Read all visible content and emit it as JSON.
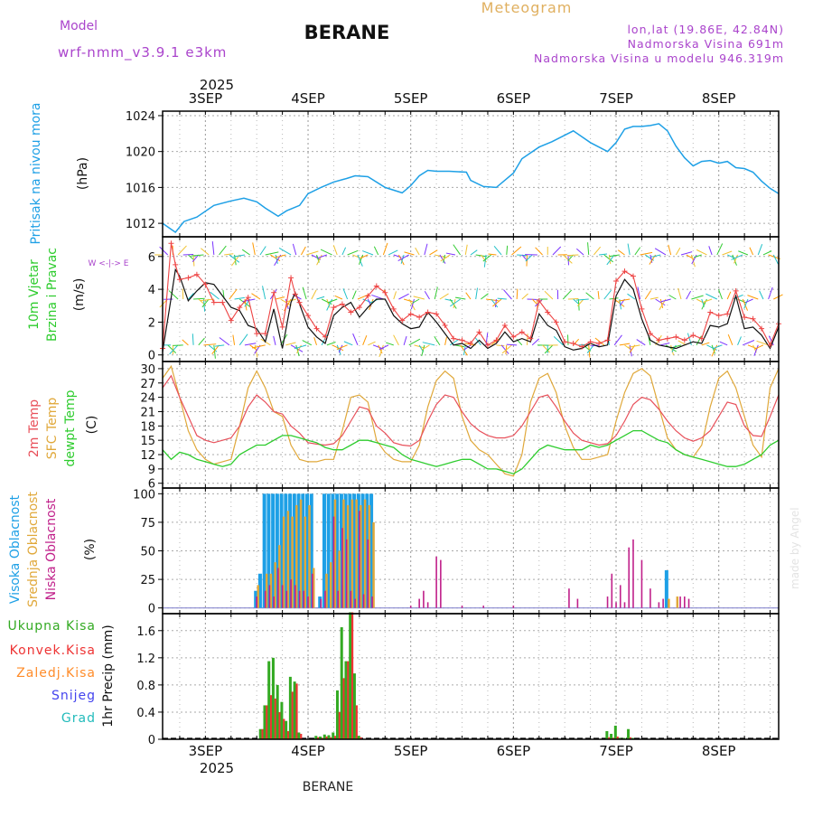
{
  "header": {
    "model_label": "Model",
    "model_name": "wrf-nmm_v3.9.1 e3km",
    "title": "BERANE",
    "product": "Meteogram",
    "location": "lon,lat (19.86E, 42.84N)",
    "elevation": "Nadmorska Visina 691m",
    "model_elevation": "Nadmorska Visina u modelu 946.319m",
    "footer_title": "BERANE",
    "watermark": "made by Angel"
  },
  "colors": {
    "pressure": "#1ea0e6",
    "temp_2m": "#e8505a",
    "temp_sfc": "#e0a83a",
    "dewpoint": "#2ecc2e",
    "cloud_high": "#1ea0e6",
    "cloud_mid": "#e0a83a",
    "cloud_low": "#c0208a",
    "precip_total": "#33aa22",
    "precip_conv": "#ee3333",
    "precip_frozen": "#ff8c2a",
    "snow": "#4444ee",
    "hail": "#22bbbb",
    "wind_speed": "#111111",
    "wind_gust": "#ee4444",
    "header_purple": "#aa44cc",
    "header_orange": "#e0b060"
  },
  "time_axis": {
    "top_year": "2025",
    "bottom_year": "2025",
    "day_labels": [
      "3SEP",
      "4SEP",
      "5SEP",
      "6SEP",
      "7SEP",
      "8SEP"
    ]
  },
  "chart_data": [
    {
      "type": "line",
      "panel": "pressure",
      "ylabel_main": "Pritisak na nivou mora",
      "ylabel_unit": "(hPa)",
      "yticks": [
        "1012",
        "1016",
        "1020",
        "1024"
      ],
      "ylim": [
        1010.5,
        1024.5
      ],
      "xlim": [
        0,
        144
      ],
      "x": [
        0,
        3,
        5,
        8,
        12,
        16,
        19,
        22,
        24,
        27,
        29,
        32,
        34,
        37,
        40,
        43,
        45,
        48,
        52,
        56,
        58,
        60,
        62,
        64,
        67,
        71,
        72,
        75,
        78,
        82,
        84,
        88,
        91,
        96,
        100,
        104,
        106,
        108,
        110,
        112,
        114,
        116,
        118,
        120,
        122,
        124,
        126,
        128,
        130,
        132,
        134,
        136,
        138,
        140,
        142,
        144
      ],
      "values": [
        1012.0,
        1011.0,
        1012.2,
        1012.7,
        1014.0,
        1014.5,
        1014.8,
        1014.4,
        1013.7,
        1012.8,
        1013.4,
        1014.0,
        1015.3,
        1016.0,
        1016.6,
        1017.0,
        1017.3,
        1017.2,
        1016.0,
        1015.4,
        1016.2,
        1017.3,
        1017.9,
        1017.8,
        1017.8,
        1017.7,
        1016.8,
        1016.1,
        1016.0,
        1017.6,
        1019.2,
        1020.5,
        1021.1,
        1022.3,
        1021.0,
        1020.0,
        1021.0,
        1022.5,
        1022.8,
        1022.8,
        1022.9,
        1023.1,
        1022.3,
        1020.6,
        1019.3,
        1018.4,
        1018.9,
        1019.0,
        1018.7,
        1018.9,
        1018.2,
        1018.1,
        1017.7,
        1016.7,
        1015.9,
        1015.3
      ]
    },
    {
      "type": "line",
      "panel": "wind",
      "ylabel_main": "10m Vjetar",
      "ylabel_sub": "Brzina i Pravac",
      "ylabel_unit": "(m/s)",
      "compass_label": "W <-|-> E",
      "yticks": [
        "0",
        "2",
        "4",
        "6"
      ],
      "ylim": [
        -0.4,
        7.2
      ],
      "xlim": [
        0,
        144
      ],
      "x": [
        0,
        2,
        3,
        4,
        6,
        8,
        10,
        12,
        14,
        16,
        18,
        20,
        22,
        24,
        26,
        28,
        30,
        31,
        32,
        34,
        36,
        38,
        40,
        42,
        44,
        46,
        48,
        50,
        52,
        54,
        56,
        58,
        60,
        62,
        64,
        66,
        68,
        70,
        72,
        74,
        76,
        78,
        80,
        82,
        84,
        86,
        88,
        90,
        92,
        94,
        96,
        98,
        100,
        102,
        104,
        106,
        108,
        110,
        112,
        114,
        116,
        118,
        120,
        122,
        124,
        126,
        128,
        130,
        132,
        134,
        136,
        138,
        140,
        142,
        144
      ],
      "series": [
        {
          "name": "speed",
          "values": [
            0.2,
            3.5,
            5.2,
            4.8,
            3.3,
            3.9,
            4.4,
            4.3,
            3.6,
            2.9,
            2.7,
            1.8,
            1.6,
            0.8,
            2.8,
            0.4,
            3.2,
            3.8,
            3.1,
            1.7,
            1.1,
            0.7,
            2.4,
            2.9,
            3.2,
            2.3,
            2.9,
            3.4,
            3.4,
            2.4,
            1.9,
            1.6,
            1.7,
            2.6,
            2.0,
            1.3,
            0.6,
            0.7,
            0.4,
            0.9,
            0.4,
            0.7,
            1.4,
            0.8,
            1.0,
            0.8,
            2.5,
            1.8,
            1.5,
            0.5,
            0.3,
            0.4,
            0.7,
            0.5,
            0.6,
            3.6,
            4.6,
            4.0,
            2.2,
            0.9,
            0.6,
            0.5,
            0.4,
            0.6,
            0.8,
            0.7,
            1.8,
            1.7,
            1.9,
            3.6,
            1.6,
            1.7,
            1.2,
            0.4,
            1.7
          ]
        },
        {
          "name": "gust",
          "values": [
            0.4,
            6.8,
            5.5,
            4.6,
            4.7,
            4.9,
            4.3,
            3.2,
            3.2,
            2.1,
            2.9,
            3.5,
            1.3,
            1.3,
            3.8,
            1.7,
            4.7,
            3.7,
            3.2,
            2.4,
            1.6,
            1.1,
            2.9,
            3.1,
            2.6,
            2.9,
            3.6,
            4.2,
            3.8,
            2.8,
            2.1,
            2.5,
            2.3,
            2.6,
            2.5,
            1.8,
            1.0,
            0.9,
            0.7,
            1.4,
            0.6,
            0.9,
            1.8,
            1.1,
            1.4,
            1.0,
            3.3,
            2.6,
            2.0,
            0.8,
            0.7,
            0.5,
            0.8,
            0.7,
            0.9,
            4.5,
            5.1,
            4.8,
            2.8,
            1.3,
            0.9,
            1.0,
            1.1,
            0.9,
            1.2,
            1.0,
            2.6,
            2.4,
            2.5,
            3.9,
            2.3,
            2.2,
            1.6,
            0.6,
            1.9
          ]
        }
      ]
    },
    {
      "type": "line",
      "panel": "temperature",
      "ylabel_lines": [
        "2m Temp",
        "SFC Temp",
        "dewpt Temp"
      ],
      "ylabel_unit": "(C)",
      "yticks": [
        "6",
        "9",
        "12",
        "15",
        "18",
        "21",
        "24",
        "27",
        "30"
      ],
      "ylim": [
        5,
        31.5
      ],
      "xlim": [
        0,
        144
      ],
      "x": [
        0,
        2,
        4,
        6,
        8,
        10,
        12,
        14,
        16,
        18,
        20,
        22,
        24,
        26,
        28,
        30,
        32,
        34,
        36,
        38,
        40,
        42,
        44,
        46,
        48,
        50,
        52,
        54,
        56,
        58,
        60,
        62,
        64,
        66,
        68,
        70,
        72,
        74,
        76,
        78,
        80,
        82,
        84,
        86,
        88,
        90,
        92,
        94,
        96,
        98,
        100,
        102,
        104,
        106,
        108,
        110,
        112,
        114,
        116,
        118,
        120,
        122,
        124,
        126,
        128,
        130,
        132,
        134,
        136,
        138,
        140,
        142,
        144
      ],
      "series": [
        {
          "name": "2m Temp",
          "values": [
            26,
            28.5,
            24,
            20,
            16,
            15,
            14.5,
            15,
            15.5,
            18,
            22,
            24.5,
            23,
            21,
            20.5,
            18,
            16.5,
            14.5,
            14.2,
            14,
            14.3,
            16,
            19,
            22,
            21.5,
            18,
            16.5,
            14.5,
            14,
            13.8,
            15,
            19,
            22.5,
            24.5,
            24,
            21,
            18.5,
            17,
            16,
            15.5,
            15.5,
            16,
            18,
            21,
            24,
            24.5,
            22,
            19,
            16.5,
            15,
            14.5,
            14,
            14.3,
            16,
            19,
            22.5,
            24,
            23.5,
            21.5,
            19,
            17,
            15.5,
            14.8,
            15.5,
            17,
            20,
            23,
            22.5,
            18,
            16,
            15.8,
            20,
            24.5
          ]
        },
        {
          "name": "SFC Temp",
          "values": [
            28,
            30.5,
            24,
            17,
            13,
            11,
            10,
            10.5,
            11,
            18,
            26,
            29.5,
            26,
            21,
            20,
            14,
            11,
            10.5,
            10.5,
            11,
            11,
            17,
            24,
            24.5,
            23,
            15,
            12.5,
            11,
            10.5,
            10.5,
            14,
            22,
            27.5,
            29.5,
            28,
            20,
            15,
            13,
            12,
            10,
            8,
            7.5,
            12,
            23,
            28,
            29,
            25,
            18,
            13.5,
            11,
            11,
            11.5,
            12,
            19,
            25,
            29,
            30,
            28.5,
            22,
            15.5,
            13,
            12,
            11.5,
            14,
            22,
            28,
            29.5,
            26,
            20,
            14,
            11.5,
            26,
            30
          ]
        },
        {
          "name": "dewpt Temp",
          "values": [
            13,
            11,
            12.5,
            12,
            11,
            10.5,
            10,
            9.5,
            10,
            12,
            13,
            14,
            14,
            15,
            16,
            16,
            15.5,
            15,
            14.5,
            13.5,
            13,
            13,
            14,
            15,
            15,
            14.5,
            14,
            13.5,
            12,
            11,
            10.5,
            10,
            9.5,
            10,
            10.5,
            11,
            11,
            10,
            9,
            9,
            8.5,
            8,
            9,
            11,
            13,
            14,
            13.5,
            13,
            13,
            13,
            14,
            13.5,
            14,
            15,
            16,
            17,
            17,
            16,
            15,
            14.5,
            13,
            12,
            11.5,
            11,
            10.5,
            10,
            9.5,
            9.5,
            10,
            11,
            12,
            14,
            15
          ]
        }
      ]
    },
    {
      "type": "bar",
      "panel": "clouds",
      "ylabel_lines": [
        "Visoka Oblacnost",
        "Srednja Oblacnost",
        "Niska Oblacnost"
      ],
      "ylabel_unit": "(%)",
      "yticks": [
        "0",
        "25",
        "50",
        "75",
        "100"
      ],
      "ylim": [
        -5,
        105
      ],
      "xlim": [
        0,
        144
      ],
      "series": [
        {
          "name": "Visoka Oblacnost",
          "x": [
            22,
            23,
            24,
            25,
            26,
            27,
            28,
            29,
            30,
            31,
            32,
            33,
            34,
            35,
            37,
            38,
            39,
            40,
            41,
            42,
            43,
            44,
            45,
            46,
            47,
            48,
            49,
            118
          ],
          "values": [
            15,
            30,
            100,
            100,
            100,
            100,
            100,
            100,
            100,
            100,
            100,
            100,
            100,
            100,
            10,
            100,
            100,
            100,
            100,
            100,
            100,
            100,
            100,
            100,
            100,
            100,
            100,
            33
          ]
        },
        {
          "name": "Srednja Oblacnost",
          "x": [
            22,
            24,
            25,
            26,
            27,
            28,
            29,
            30,
            31,
            32,
            33,
            34,
            35,
            38,
            39,
            40,
            41,
            42,
            43,
            44,
            45,
            46,
            47,
            48,
            49,
            118,
            120
          ],
          "values": [
            20,
            30,
            30,
            40,
            55,
            80,
            85,
            80,
            90,
            95,
            80,
            90,
            35,
            30,
            40,
            95,
            50,
            95,
            90,
            95,
            95,
            90,
            95,
            90,
            75,
            8,
            10
          ]
        },
        {
          "name": "Niska Oblacnost",
          "x": [
            22,
            24,
            25,
            26,
            27,
            28,
            29,
            30,
            31,
            32,
            33,
            34,
            35,
            37,
            38,
            40,
            41,
            42,
            43,
            44,
            45,
            46,
            47,
            48,
            49,
            58,
            60,
            61,
            62,
            64,
            65,
            70,
            75,
            82,
            95,
            97,
            104,
            105,
            106,
            107,
            108,
            109,
            110,
            112,
            114,
            116,
            117,
            121,
            122,
            123
          ],
          "values": [
            10,
            15,
            20,
            10,
            35,
            20,
            15,
            25,
            20,
            15,
            15,
            10,
            30,
            8,
            15,
            80,
            15,
            70,
            60,
            15,
            8,
            85,
            12,
            60,
            10,
            2,
            8,
            15,
            5,
            45,
            42,
            2,
            2,
            2,
            17,
            8,
            10,
            30,
            5,
            20,
            5,
            53,
            60,
            42,
            17,
            5,
            8,
            10,
            10,
            8
          ]
        }
      ]
    },
    {
      "type": "bar",
      "panel": "precipitation",
      "ylabel_lines": [
        "Ukupna Kisa",
        "Konvek.Kisa",
        "Zaledj.Kisa",
        "Snijeg",
        "Grad"
      ],
      "ylabel_unit": "1hr Precip (mm)",
      "yticks": [
        "0",
        "0.4",
        "0.8",
        "1.2",
        "1.6"
      ],
      "ylim": [
        0,
        1.85
      ],
      "xlim": [
        0,
        144
      ],
      "x": [
        23,
        24,
        25,
        26,
        27,
        28,
        29,
        30,
        31,
        32,
        36,
        37,
        38,
        39,
        40,
        41,
        42,
        43,
        44,
        45,
        46,
        104,
        105,
        106,
        107,
        108,
        109,
        110
      ],
      "series": [
        {
          "name": "Ukupna Kisa",
          "values": [
            0.15,
            0.5,
            1.15,
            1.2,
            0.8,
            0.55,
            0.27,
            0.92,
            0.85,
            0.1,
            0.05,
            0.04,
            0.07,
            0.06,
            0.1,
            0.72,
            1.65,
            1.15,
            1.87,
            0.97,
            0.05,
            0.12,
            0.08,
            0.2,
            0.02,
            0.02,
            0.15,
            0.02
          ]
        },
        {
          "name": "Konvek.Kisa",
          "values": [
            0.15,
            0.5,
            0.65,
            0.6,
            0.4,
            0.3,
            0.12,
            0.7,
            0.82,
            0.08,
            0.03,
            0.02,
            0.04,
            0.03,
            0.05,
            0.4,
            0.9,
            1.15,
            1.87,
            0.5,
            0.03,
            0.03,
            0.02,
            0.04,
            0.0,
            0.0,
            0.03,
            0.0
          ]
        }
      ]
    }
  ]
}
